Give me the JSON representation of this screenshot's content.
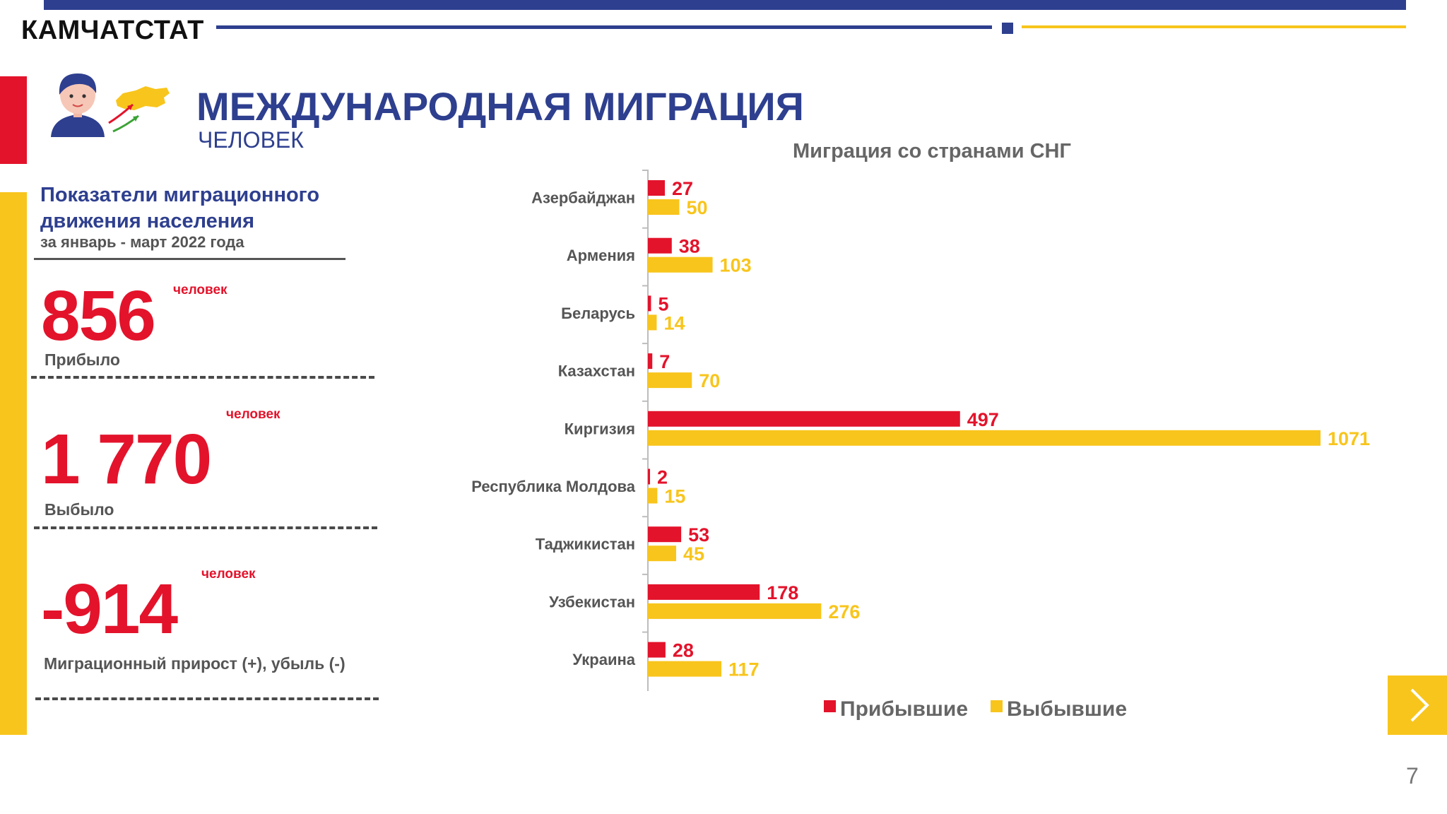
{
  "header": {
    "org": "КАМЧАТСТАТ",
    "title": "МЕЖДУНАРОДНАЯ МИГРАЦИЯ",
    "subtitle": "ЧЕЛОВЕК"
  },
  "panel": {
    "title": "Показатели миграционного движения населения",
    "period": "за январь - март 2022 года",
    "stats": [
      {
        "value": "856",
        "unit": "человек",
        "label": "Прибыло"
      },
      {
        "value": "1 770",
        "unit": "человек",
        "label": "Выбыло"
      },
      {
        "value": "-914",
        "unit": "человек",
        "label": "Миграционный прирост (+), убыль (-)"
      }
    ]
  },
  "colors": {
    "navy": "#2e3f8f",
    "red": "#e3132b",
    "yellow": "#f8c51c"
  },
  "chart_data": {
    "type": "bar",
    "orientation": "horizontal",
    "title": "Миграция со странами СНГ",
    "categories": [
      "Азербайджан",
      "Армения",
      "Беларусь",
      "Казахстан",
      "Киргизия",
      "Республика Молдова",
      "Таджикистан",
      "Узбекистан",
      "Украина"
    ],
    "series": [
      {
        "name": "Прибывшие",
        "color": "#e3132b",
        "values": [
          27,
          38,
          5,
          7,
          497,
          2,
          53,
          178,
          28
        ]
      },
      {
        "name": "Выбывшие",
        "color": "#f8c51c",
        "values": [
          50,
          103,
          14,
          70,
          1071,
          15,
          45,
          276,
          117
        ]
      }
    ],
    "xlim": [
      0,
      1071
    ],
    "legend": "bottom"
  },
  "nav": {
    "next_icon": "chevron-right-icon"
  },
  "page_number": "7"
}
